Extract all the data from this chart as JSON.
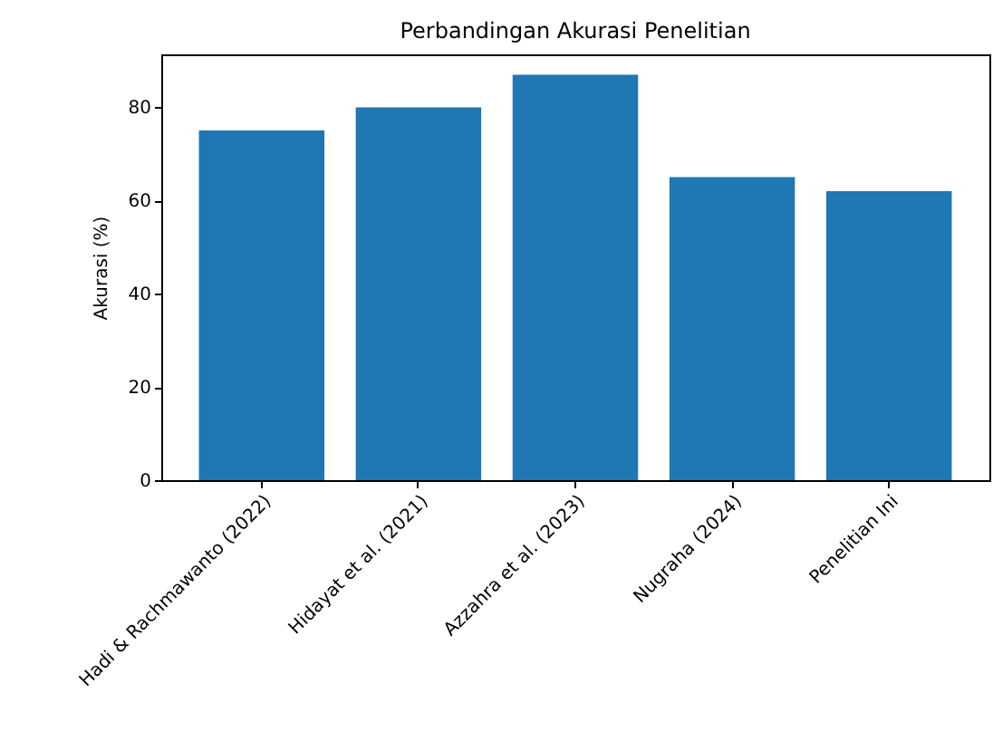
{
  "chart_data": {
    "type": "bar",
    "title": "Perbandingan Akurasi Penelitian",
    "ylabel": "Akurasi (%)",
    "categories": [
      "Hadi & Rachmawanto (2022)",
      "Hidayat et al. (2021)",
      "Azzahra et al. (2023)",
      "Nugraha (2024)",
      "Penelitian Ini"
    ],
    "values": [
      75,
      80,
      87,
      65,
      62
    ],
    "color": "#1f77b4",
    "ylim": [
      0,
      91.35
    ],
    "yticks": [
      0,
      20,
      40,
      60,
      80
    ],
    "grid": false
  }
}
